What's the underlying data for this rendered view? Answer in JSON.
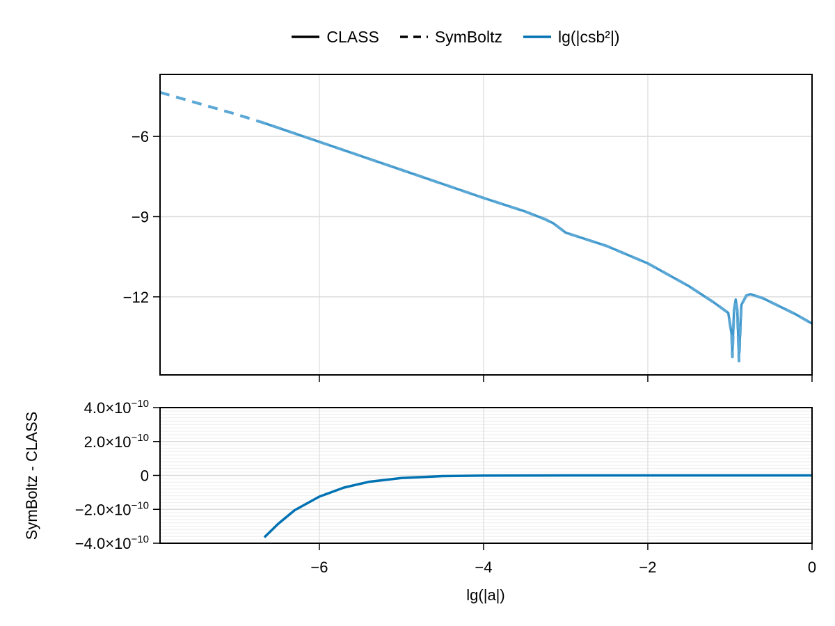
{
  "legend": {
    "items": [
      {
        "label": "CLASS",
        "style": "solid",
        "color": "#000000"
      },
      {
        "label": "SymBoltz",
        "style": "dashed",
        "color": "#000000"
      },
      {
        "label": "lg(|csb²|)",
        "style": "solid",
        "color": "#0072b2"
      }
    ]
  },
  "axes": {
    "xlabel": "lg(|a|)",
    "upper_ylabel": "",
    "lower_ylabel": "SymBoltz - CLASS"
  },
  "chart_data": [
    {
      "type": "line",
      "title": "",
      "xlabel": "",
      "ylabel": "",
      "xlim": [
        -7.94,
        0
      ],
      "ylim": [
        -14.92,
        -3.68
      ],
      "grid": true,
      "legend_position": "top-center",
      "x_ticks": [
        -6,
        -4,
        -2,
        0
      ],
      "y_ticks": [
        -6,
        -9,
        -12
      ],
      "y_tick_labels": [
        "−6",
        "−9",
        "−12"
      ],
      "series": [
        {
          "name": "lg(|csb²|) SymBoltz",
          "style": "dashed",
          "color": "#5ba8d6",
          "x": [
            -7.94,
            -7.0,
            -6.67,
            -6.0,
            -5.0,
            -4.0,
            -3.5,
            -3.25,
            -3.15,
            -3.0,
            -2.5,
            -2.0,
            -1.5,
            -1.2,
            -1.02,
            -0.98,
            -0.97,
            -0.95,
            -0.93,
            -0.91,
            -0.89,
            -0.86,
            -0.8,
            -0.75,
            -0.6,
            -0.4,
            -0.2,
            0.0
          ],
          "y": [
            -4.35,
            -5.18,
            -5.5,
            -6.2,
            -7.25,
            -8.3,
            -8.8,
            -9.1,
            -9.25,
            -9.6,
            -10.1,
            -10.75,
            -11.6,
            -12.2,
            -12.6,
            -13.4,
            -14.25,
            -12.5,
            -12.1,
            -12.5,
            -14.4,
            -12.3,
            -11.95,
            -11.9,
            -12.05,
            -12.35,
            -12.65,
            -13.0
          ]
        },
        {
          "name": "lg(|csb²|) CLASS",
          "style": "solid",
          "color": "#0072b2",
          "x": [
            -6.67,
            -6.0,
            -5.0,
            -4.0,
            -3.5,
            -3.25,
            -3.15,
            -3.0,
            -2.5,
            -2.0,
            -1.5,
            -1.2,
            -1.02,
            -0.98,
            -0.97,
            -0.95,
            -0.93,
            -0.91,
            -0.89,
            -0.86,
            -0.8,
            -0.75,
            -0.6,
            -0.4,
            -0.2,
            0.0
          ],
          "y": [
            -5.5,
            -6.2,
            -7.25,
            -8.3,
            -8.8,
            -9.1,
            -9.25,
            -9.6,
            -10.1,
            -10.75,
            -11.6,
            -12.2,
            -12.6,
            -13.4,
            -14.1,
            -12.5,
            -12.1,
            -12.5,
            -14.3,
            -12.3,
            -11.95,
            -11.9,
            -12.05,
            -12.35,
            -12.65,
            -13.0
          ]
        }
      ]
    },
    {
      "type": "line",
      "title": "",
      "xlabel": "lg(|a|)",
      "ylabel": "SymBoltz - CLASS",
      "xlim": [
        -7.94,
        0
      ],
      "ylim": [
        -4e-10,
        4e-10
      ],
      "grid": true,
      "minor_grid": true,
      "x_ticks": [
        -6,
        -4,
        -2,
        0
      ],
      "x_tick_labels": [
        "−6",
        "−4",
        "−2",
        "0"
      ],
      "y_ticks": [
        -4e-10,
        -2e-10,
        0,
        2e-10,
        4e-10
      ],
      "y_tick_labels": [
        "−4.0×10⁻¹⁰",
        "−2.0×10⁻¹⁰",
        "0",
        "2.0×10⁻¹⁰",
        "4.0×10⁻¹⁰"
      ],
      "series": [
        {
          "name": "SymBoltz - CLASS",
          "style": "solid",
          "color": "#0072b2",
          "x": [
            -6.67,
            -6.5,
            -6.3,
            -6.0,
            -5.7,
            -5.4,
            -5.0,
            -4.5,
            -4.0,
            -3.0,
            -2.0,
            -1.0,
            0.0
          ],
          "y": [
            -3.65e-10,
            -2.85e-10,
            -2.05e-10,
            -1.25e-10,
            -7.2e-11,
            -3.8e-11,
            -1.5e-11,
            -4e-12,
            -1e-12,
            0,
            0,
            0,
            0
          ]
        }
      ]
    }
  ]
}
